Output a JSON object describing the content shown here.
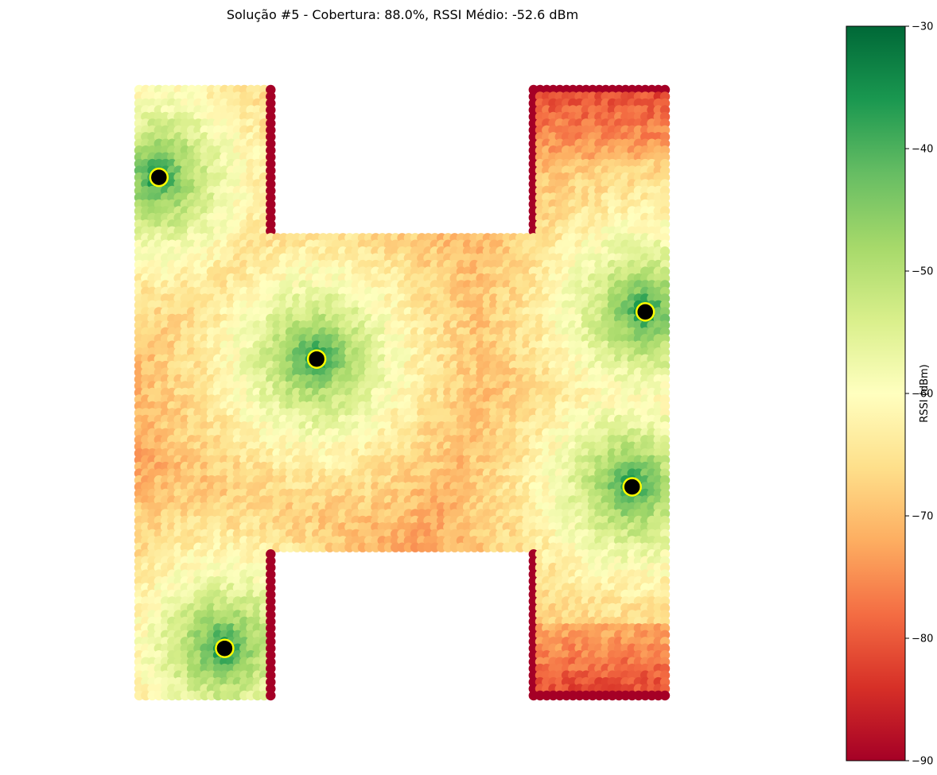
{
  "chart_data": {
    "type": "heatmap",
    "title": "Solução #5 - Cobertura: 88.0%, RSSI Médio: -52.6 dBm",
    "colorbar": {
      "label": "RSSI (dBm)",
      "range": [
        -90,
        -30
      ],
      "ticks": [
        "−30",
        "−40",
        "−50",
        "−60",
        "−70",
        "−80",
        "−90"
      ],
      "tick_values": [
        -30,
        -40,
        -50,
        -60,
        -70,
        -80,
        -90
      ],
      "colormap": "RdYlGn",
      "stops": [
        "#a50026",
        "#d73027",
        "#f46d43",
        "#fdae61",
        "#fee08b",
        "#ffffbf",
        "#d9ef8b",
        "#a6d96a",
        "#66bd63",
        "#1a9850",
        "#006837"
      ]
    },
    "access_points": [
      {
        "x": 1.5,
        "y": 38.5
      },
      {
        "x": 13.5,
        "y": 25.0
      },
      {
        "x": 38.5,
        "y": 28.5
      },
      {
        "x": 37.5,
        "y": 15.5
      },
      {
        "x": 6.5,
        "y": 3.5
      }
    ],
    "grid": {
      "xlim": [
        0,
        40
      ],
      "ylim": [
        0,
        45
      ]
    },
    "shape": "H-shaped floor plan",
    "point_color": "#000000",
    "marker_edge_color": "#ffff00"
  }
}
